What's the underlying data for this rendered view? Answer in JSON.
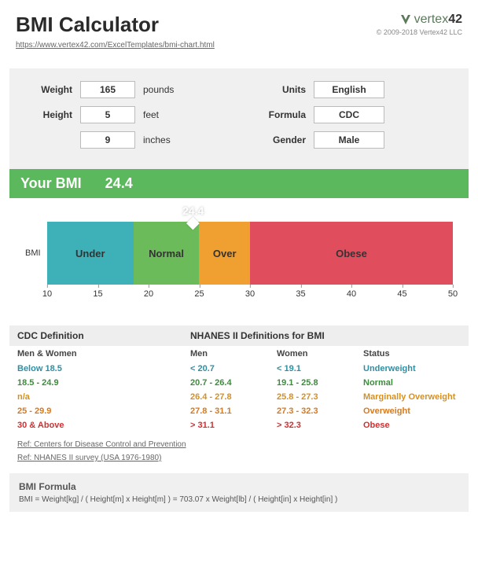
{
  "header": {
    "title": "BMI Calculator",
    "url": "https://www.vertex42.com/ExcelTemplates/bmi-chart.html",
    "logo_text": "vertex",
    "logo_suffix": "42",
    "copyright": "© 2009-2018 Vertex42 LLC"
  },
  "inputs": {
    "weight_label": "Weight",
    "weight_value": "165",
    "weight_unit": "pounds",
    "height_label": "Height",
    "height_feet": "5",
    "height_feet_unit": "feet",
    "height_inches": "9",
    "height_inches_unit": "inches",
    "units_label": "Units",
    "units_value": "English",
    "formula_label": "Formula",
    "formula_value": "CDC",
    "gender_label": "Gender",
    "gender_value": "Male"
  },
  "result": {
    "label": "Your BMI",
    "value": "24.4",
    "bar_color": "#5cb85c"
  },
  "chart": {
    "ylabel": "BMI",
    "xmin": 10,
    "xmax": 50,
    "ticks": [
      10,
      15,
      20,
      25,
      30,
      35,
      40,
      45,
      50
    ],
    "marker": {
      "value": 24.4,
      "label": "24.4"
    },
    "segments": [
      {
        "label": "Under",
        "from": 10,
        "to": 18.5,
        "color": "#3eb0b8"
      },
      {
        "label": "Normal",
        "from": 18.5,
        "to": 25,
        "color": "#6cbb5a"
      },
      {
        "label": "Over",
        "from": 25,
        "to": 30,
        "color": "#f0a030"
      },
      {
        "label": "Obese",
        "from": 30,
        "to": 50,
        "color": "#e04e5e"
      }
    ]
  },
  "definitions": {
    "cdc_title": "CDC Definition",
    "nhanes_title": "NHANES II Definitions for BMI",
    "subhead": {
      "cdc": "Men & Women",
      "men": "Men",
      "women": "Women",
      "status": "Status"
    },
    "rows": [
      {
        "cdc": "Below 18.5",
        "men": "< 20.7",
        "women": "< 19.1",
        "status": "Underweight",
        "color": "#2e8fa3"
      },
      {
        "cdc": "18.5 - 24.9",
        "men": "20.7 - 26.4",
        "women": "19.1 - 25.8",
        "status": "Normal",
        "color": "#3c8c3c"
      },
      {
        "cdc": "n/a",
        "men": "26.4 - 27.8",
        "women": "25.8 - 27.3",
        "status": "Marginally Overweight",
        "color": "#d69020"
      },
      {
        "cdc": "25 - 29.9",
        "men": "27.8 - 31.1",
        "women": "27.3 - 32.3",
        "status": "Overweight",
        "color": "#d67a20"
      },
      {
        "cdc": "30 & Above",
        "men": "> 31.1",
        "women": "> 32.3",
        "status": "Obese",
        "color": "#d03030"
      }
    ],
    "refs": [
      "Ref: Centers for Disease Control and Prevention",
      "Ref: NHANES II survey (USA 1976-1980)"
    ]
  },
  "formula": {
    "title": "BMI Formula",
    "text": "BMI = Weight[kg] / ( Height[m] x Height[m] ) = 703.07 x Weight[lb] / ( Height[in] x Height[in] )"
  }
}
